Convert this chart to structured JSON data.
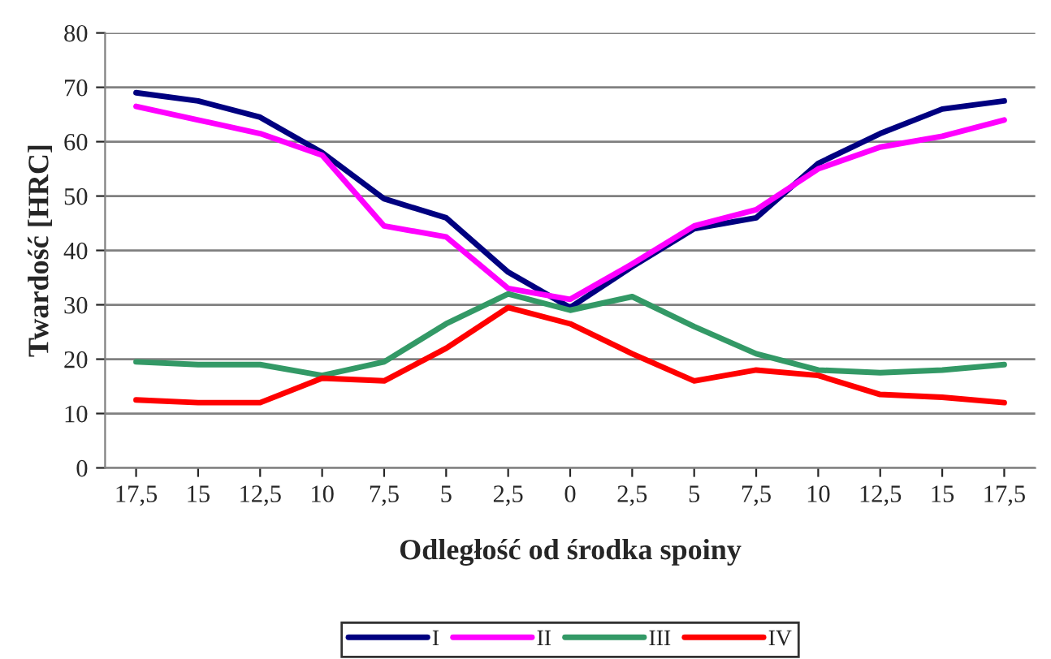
{
  "chart_data": {
    "type": "line",
    "xlabel": "Odległość od środka spoiny",
    "ylabel": "Twardość [HRC]",
    "categories": [
      "17,5",
      "15",
      "12,5",
      "10",
      "7,5",
      "5",
      "2,5",
      "0",
      "2,5",
      "5",
      "7,5",
      "10",
      "12,5",
      "15",
      "17,5"
    ],
    "series": [
      {
        "name": "I",
        "color": "#000080",
        "values": [
          69,
          67.5,
          64.5,
          58,
          49.5,
          46,
          36,
          29.5,
          37,
          44,
          46,
          56,
          61.5,
          66,
          67.5
        ]
      },
      {
        "name": "II",
        "color": "#ff00ff",
        "values": [
          66.5,
          64,
          61.5,
          57.5,
          44.5,
          42.5,
          33,
          31,
          37.5,
          44.5,
          47.5,
          55,
          59,
          61,
          64
        ]
      },
      {
        "name": "III",
        "color": "#339966",
        "values": [
          19.5,
          19,
          19,
          17,
          19.5,
          26.5,
          32,
          29,
          31.5,
          26,
          21,
          18,
          17.5,
          18,
          19
        ]
      },
      {
        "name": "IV",
        "color": "#ff0000",
        "values": [
          12.5,
          12,
          12,
          16.5,
          16,
          22,
          29.5,
          26.5,
          21,
          16,
          18,
          17,
          13.5,
          13,
          12
        ]
      }
    ],
    "ylim": [
      0,
      80
    ],
    "yticks": [
      0,
      10,
      20,
      30,
      40,
      50,
      60,
      70,
      80
    ],
    "grid": "y",
    "legend": "bottom",
    "marker": "none",
    "line_style": "solid"
  }
}
